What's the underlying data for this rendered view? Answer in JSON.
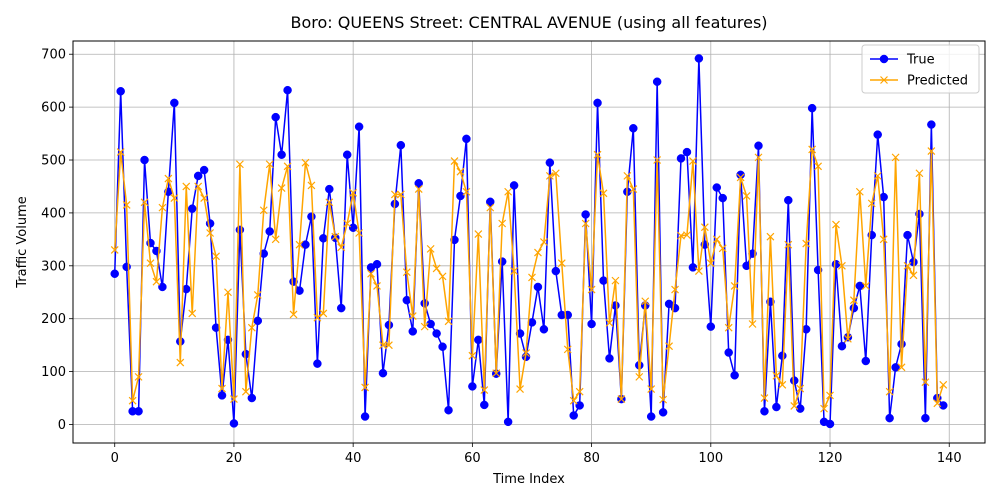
{
  "chart_data": {
    "type": "line",
    "title": "Boro: QUEENS Street: CENTRAL AVENUE (using all features)",
    "xlabel": "Time Index",
    "ylabel": "Traffic Volume",
    "xlim": [
      -7,
      146
    ],
    "ylim": [
      -35,
      725
    ],
    "xticks": [
      0,
      20,
      40,
      60,
      80,
      100,
      120,
      140
    ],
    "yticks": [
      0,
      100,
      200,
      300,
      400,
      500,
      600,
      700
    ],
    "grid": true,
    "legend_position": "top-right",
    "x": [
      0,
      1,
      2,
      3,
      4,
      5,
      6,
      7,
      8,
      9,
      10,
      11,
      12,
      13,
      14,
      15,
      16,
      17,
      18,
      19,
      20,
      21,
      22,
      23,
      24,
      25,
      26,
      27,
      28,
      29,
      30,
      31,
      32,
      33,
      34,
      35,
      36,
      37,
      38,
      39,
      40,
      41,
      42,
      43,
      44,
      45,
      46,
      47,
      48,
      49,
      50,
      51,
      52,
      53,
      54,
      55,
      56,
      57,
      58,
      59,
      60,
      61,
      62,
      63,
      64,
      65,
      66,
      67,
      68,
      69,
      70,
      71,
      72,
      73,
      74,
      75,
      76,
      77,
      78,
      79,
      80,
      81,
      82,
      83,
      84,
      85,
      86,
      87,
      88,
      89,
      90,
      91,
      92,
      93,
      94,
      95,
      96,
      97,
      98,
      99,
      100,
      101,
      102,
      103,
      104,
      105,
      106,
      107,
      108,
      109,
      110,
      111,
      112,
      113,
      114,
      115,
      116,
      117,
      118,
      119,
      120,
      121,
      122,
      123,
      124,
      125,
      126,
      127,
      128,
      129,
      130,
      131,
      132,
      133,
      134,
      135,
      136,
      137,
      138,
      139
    ],
    "series": [
      {
        "name": "True",
        "color": "#0000ff",
        "marker": "circle",
        "values": [
          285,
          630,
          298,
          25,
          25,
          500,
          343,
          328,
          260,
          440,
          608,
          157,
          256,
          408,
          470,
          481,
          380,
          183,
          55,
          160,
          2,
          368,
          133,
          50,
          196,
          323,
          365,
          581,
          510,
          632,
          270,
          253,
          340,
          393,
          115,
          352,
          445,
          353,
          220,
          510,
          372,
          563,
          15,
          297,
          303,
          97,
          188,
          417,
          528,
          235,
          176,
          456,
          229,
          190,
          172,
          147,
          27,
          349,
          432,
          540,
          72,
          160,
          37,
          421,
          96,
          308,
          5,
          452,
          172,
          128,
          193,
          260,
          180,
          495,
          290,
          207,
          207,
          17,
          36,
          397,
          190,
          608,
          272,
          125,
          225,
          48,
          440,
          560,
          112,
          225,
          15,
          648,
          23,
          228,
          220,
          503,
          515,
          297,
          692,
          340,
          185,
          448,
          428,
          136,
          93,
          472,
          300,
          323,
          527,
          25,
          232,
          33,
          130,
          424,
          83,
          30,
          180,
          598,
          292,
          5,
          1,
          303,
          148,
          165,
          220,
          262,
          120,
          358,
          548,
          430,
          12,
          108,
          152,
          358,
          307,
          398,
          12,
          567,
          50,
          36
        ]
      },
      {
        "name": "Predicted",
        "color": "#ffa500",
        "marker": "x",
        "values": [
          330,
          515,
          415,
          45,
          90,
          420,
          305,
          270,
          410,
          465,
          428,
          117,
          450,
          210,
          450,
          428,
          362,
          318,
          68,
          250,
          48,
          492,
          62,
          183,
          245,
          405,
          492,
          350,
          447,
          488,
          208,
          340,
          495,
          452,
          202,
          210,
          420,
          355,
          335,
          380,
          438,
          362,
          70,
          285,
          262,
          150,
          150,
          435,
          435,
          288,
          205,
          445,
          185,
          332,
          295,
          280,
          195,
          498,
          478,
          440,
          130,
          360,
          65,
          410,
          97,
          380,
          440,
          290,
          67,
          135,
          278,
          325,
          345,
          470,
          475,
          305,
          142,
          45,
          62,
          380,
          255,
          510,
          437,
          192,
          272,
          48,
          470,
          445,
          90,
          233,
          67,
          500,
          47,
          148,
          255,
          357,
          358,
          498,
          290,
          373,
          305,
          350,
          333,
          183,
          262,
          467,
          432,
          190,
          505,
          50,
          355,
          92,
          75,
          340,
          35,
          68,
          342,
          520,
          488,
          30,
          55,
          378,
          300,
          162,
          235,
          440,
          262,
          418,
          470,
          350,
          62,
          505,
          108,
          300,
          282,
          475,
          80,
          517,
          40,
          75
        ]
      }
    ]
  }
}
